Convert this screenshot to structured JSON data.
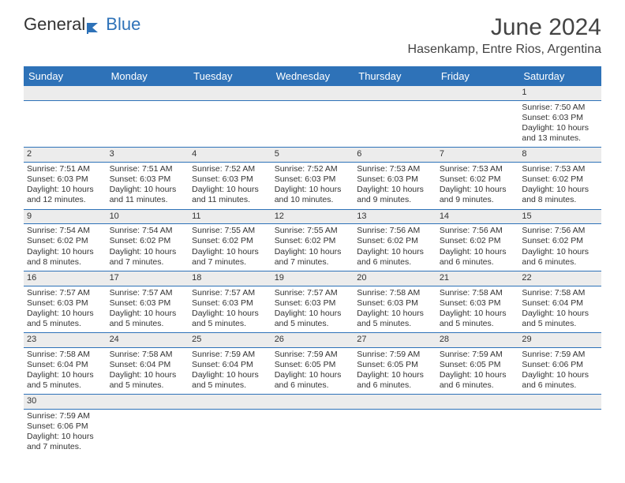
{
  "logo": {
    "text1": "General",
    "text2": "Blue",
    "icon_color": "#2e72b8"
  },
  "title": "June 2024",
  "location": "Hasenkamp, Entre Rios, Argentina",
  "colors": {
    "header_bg": "#2e72b8",
    "header_text": "#ffffff",
    "daynum_bg": "#ececec",
    "rule": "#2e72b8",
    "text": "#333333",
    "background": "#ffffff"
  },
  "day_headers": [
    "Sunday",
    "Monday",
    "Tuesday",
    "Wednesday",
    "Thursday",
    "Friday",
    "Saturday"
  ],
  "weeks": [
    [
      null,
      null,
      null,
      null,
      null,
      null,
      {
        "n": "1",
        "sunrise": "7:50 AM",
        "sunset": "6:03 PM",
        "daylight1": "Daylight: 10 hours",
        "daylight2": "and 13 minutes."
      }
    ],
    [
      {
        "n": "2",
        "sunrise": "7:51 AM",
        "sunset": "6:03 PM",
        "daylight1": "Daylight: 10 hours",
        "daylight2": "and 12 minutes."
      },
      {
        "n": "3",
        "sunrise": "7:51 AM",
        "sunset": "6:03 PM",
        "daylight1": "Daylight: 10 hours",
        "daylight2": "and 11 minutes."
      },
      {
        "n": "4",
        "sunrise": "7:52 AM",
        "sunset": "6:03 PM",
        "daylight1": "Daylight: 10 hours",
        "daylight2": "and 11 minutes."
      },
      {
        "n": "5",
        "sunrise": "7:52 AM",
        "sunset": "6:03 PM",
        "daylight1": "Daylight: 10 hours",
        "daylight2": "and 10 minutes."
      },
      {
        "n": "6",
        "sunrise": "7:53 AM",
        "sunset": "6:03 PM",
        "daylight1": "Daylight: 10 hours",
        "daylight2": "and 9 minutes."
      },
      {
        "n": "7",
        "sunrise": "7:53 AM",
        "sunset": "6:02 PM",
        "daylight1": "Daylight: 10 hours",
        "daylight2": "and 9 minutes."
      },
      {
        "n": "8",
        "sunrise": "7:53 AM",
        "sunset": "6:02 PM",
        "daylight1": "Daylight: 10 hours",
        "daylight2": "and 8 minutes."
      }
    ],
    [
      {
        "n": "9",
        "sunrise": "7:54 AM",
        "sunset": "6:02 PM",
        "daylight1": "Daylight: 10 hours",
        "daylight2": "and 8 minutes."
      },
      {
        "n": "10",
        "sunrise": "7:54 AM",
        "sunset": "6:02 PM",
        "daylight1": "Daylight: 10 hours",
        "daylight2": "and 7 minutes."
      },
      {
        "n": "11",
        "sunrise": "7:55 AM",
        "sunset": "6:02 PM",
        "daylight1": "Daylight: 10 hours",
        "daylight2": "and 7 minutes."
      },
      {
        "n": "12",
        "sunrise": "7:55 AM",
        "sunset": "6:02 PM",
        "daylight1": "Daylight: 10 hours",
        "daylight2": "and 7 minutes."
      },
      {
        "n": "13",
        "sunrise": "7:56 AM",
        "sunset": "6:02 PM",
        "daylight1": "Daylight: 10 hours",
        "daylight2": "and 6 minutes."
      },
      {
        "n": "14",
        "sunrise": "7:56 AM",
        "sunset": "6:02 PM",
        "daylight1": "Daylight: 10 hours",
        "daylight2": "and 6 minutes."
      },
      {
        "n": "15",
        "sunrise": "7:56 AM",
        "sunset": "6:02 PM",
        "daylight1": "Daylight: 10 hours",
        "daylight2": "and 6 minutes."
      }
    ],
    [
      {
        "n": "16",
        "sunrise": "7:57 AM",
        "sunset": "6:03 PM",
        "daylight1": "Daylight: 10 hours",
        "daylight2": "and 5 minutes."
      },
      {
        "n": "17",
        "sunrise": "7:57 AM",
        "sunset": "6:03 PM",
        "daylight1": "Daylight: 10 hours",
        "daylight2": "and 5 minutes."
      },
      {
        "n": "18",
        "sunrise": "7:57 AM",
        "sunset": "6:03 PM",
        "daylight1": "Daylight: 10 hours",
        "daylight2": "and 5 minutes."
      },
      {
        "n": "19",
        "sunrise": "7:57 AM",
        "sunset": "6:03 PM",
        "daylight1": "Daylight: 10 hours",
        "daylight2": "and 5 minutes."
      },
      {
        "n": "20",
        "sunrise": "7:58 AM",
        "sunset": "6:03 PM",
        "daylight1": "Daylight: 10 hours",
        "daylight2": "and 5 minutes."
      },
      {
        "n": "21",
        "sunrise": "7:58 AM",
        "sunset": "6:03 PM",
        "daylight1": "Daylight: 10 hours",
        "daylight2": "and 5 minutes."
      },
      {
        "n": "22",
        "sunrise": "7:58 AM",
        "sunset": "6:04 PM",
        "daylight1": "Daylight: 10 hours",
        "daylight2": "and 5 minutes."
      }
    ],
    [
      {
        "n": "23",
        "sunrise": "7:58 AM",
        "sunset": "6:04 PM",
        "daylight1": "Daylight: 10 hours",
        "daylight2": "and 5 minutes."
      },
      {
        "n": "24",
        "sunrise": "7:58 AM",
        "sunset": "6:04 PM",
        "daylight1": "Daylight: 10 hours",
        "daylight2": "and 5 minutes."
      },
      {
        "n": "25",
        "sunrise": "7:59 AM",
        "sunset": "6:04 PM",
        "daylight1": "Daylight: 10 hours",
        "daylight2": "and 5 minutes."
      },
      {
        "n": "26",
        "sunrise": "7:59 AM",
        "sunset": "6:05 PM",
        "daylight1": "Daylight: 10 hours",
        "daylight2": "and 6 minutes."
      },
      {
        "n": "27",
        "sunrise": "7:59 AM",
        "sunset": "6:05 PM",
        "daylight1": "Daylight: 10 hours",
        "daylight2": "and 6 minutes."
      },
      {
        "n": "28",
        "sunrise": "7:59 AM",
        "sunset": "6:05 PM",
        "daylight1": "Daylight: 10 hours",
        "daylight2": "and 6 minutes."
      },
      {
        "n": "29",
        "sunrise": "7:59 AM",
        "sunset": "6:06 PM",
        "daylight1": "Daylight: 10 hours",
        "daylight2": "and 6 minutes."
      }
    ],
    [
      {
        "n": "30",
        "sunrise": "7:59 AM",
        "sunset": "6:06 PM",
        "daylight1": "Daylight: 10 hours",
        "daylight2": "and 7 minutes."
      },
      null,
      null,
      null,
      null,
      null,
      null
    ]
  ],
  "labels": {
    "sunrise_prefix": "Sunrise: ",
    "sunset_prefix": "Sunset: "
  }
}
